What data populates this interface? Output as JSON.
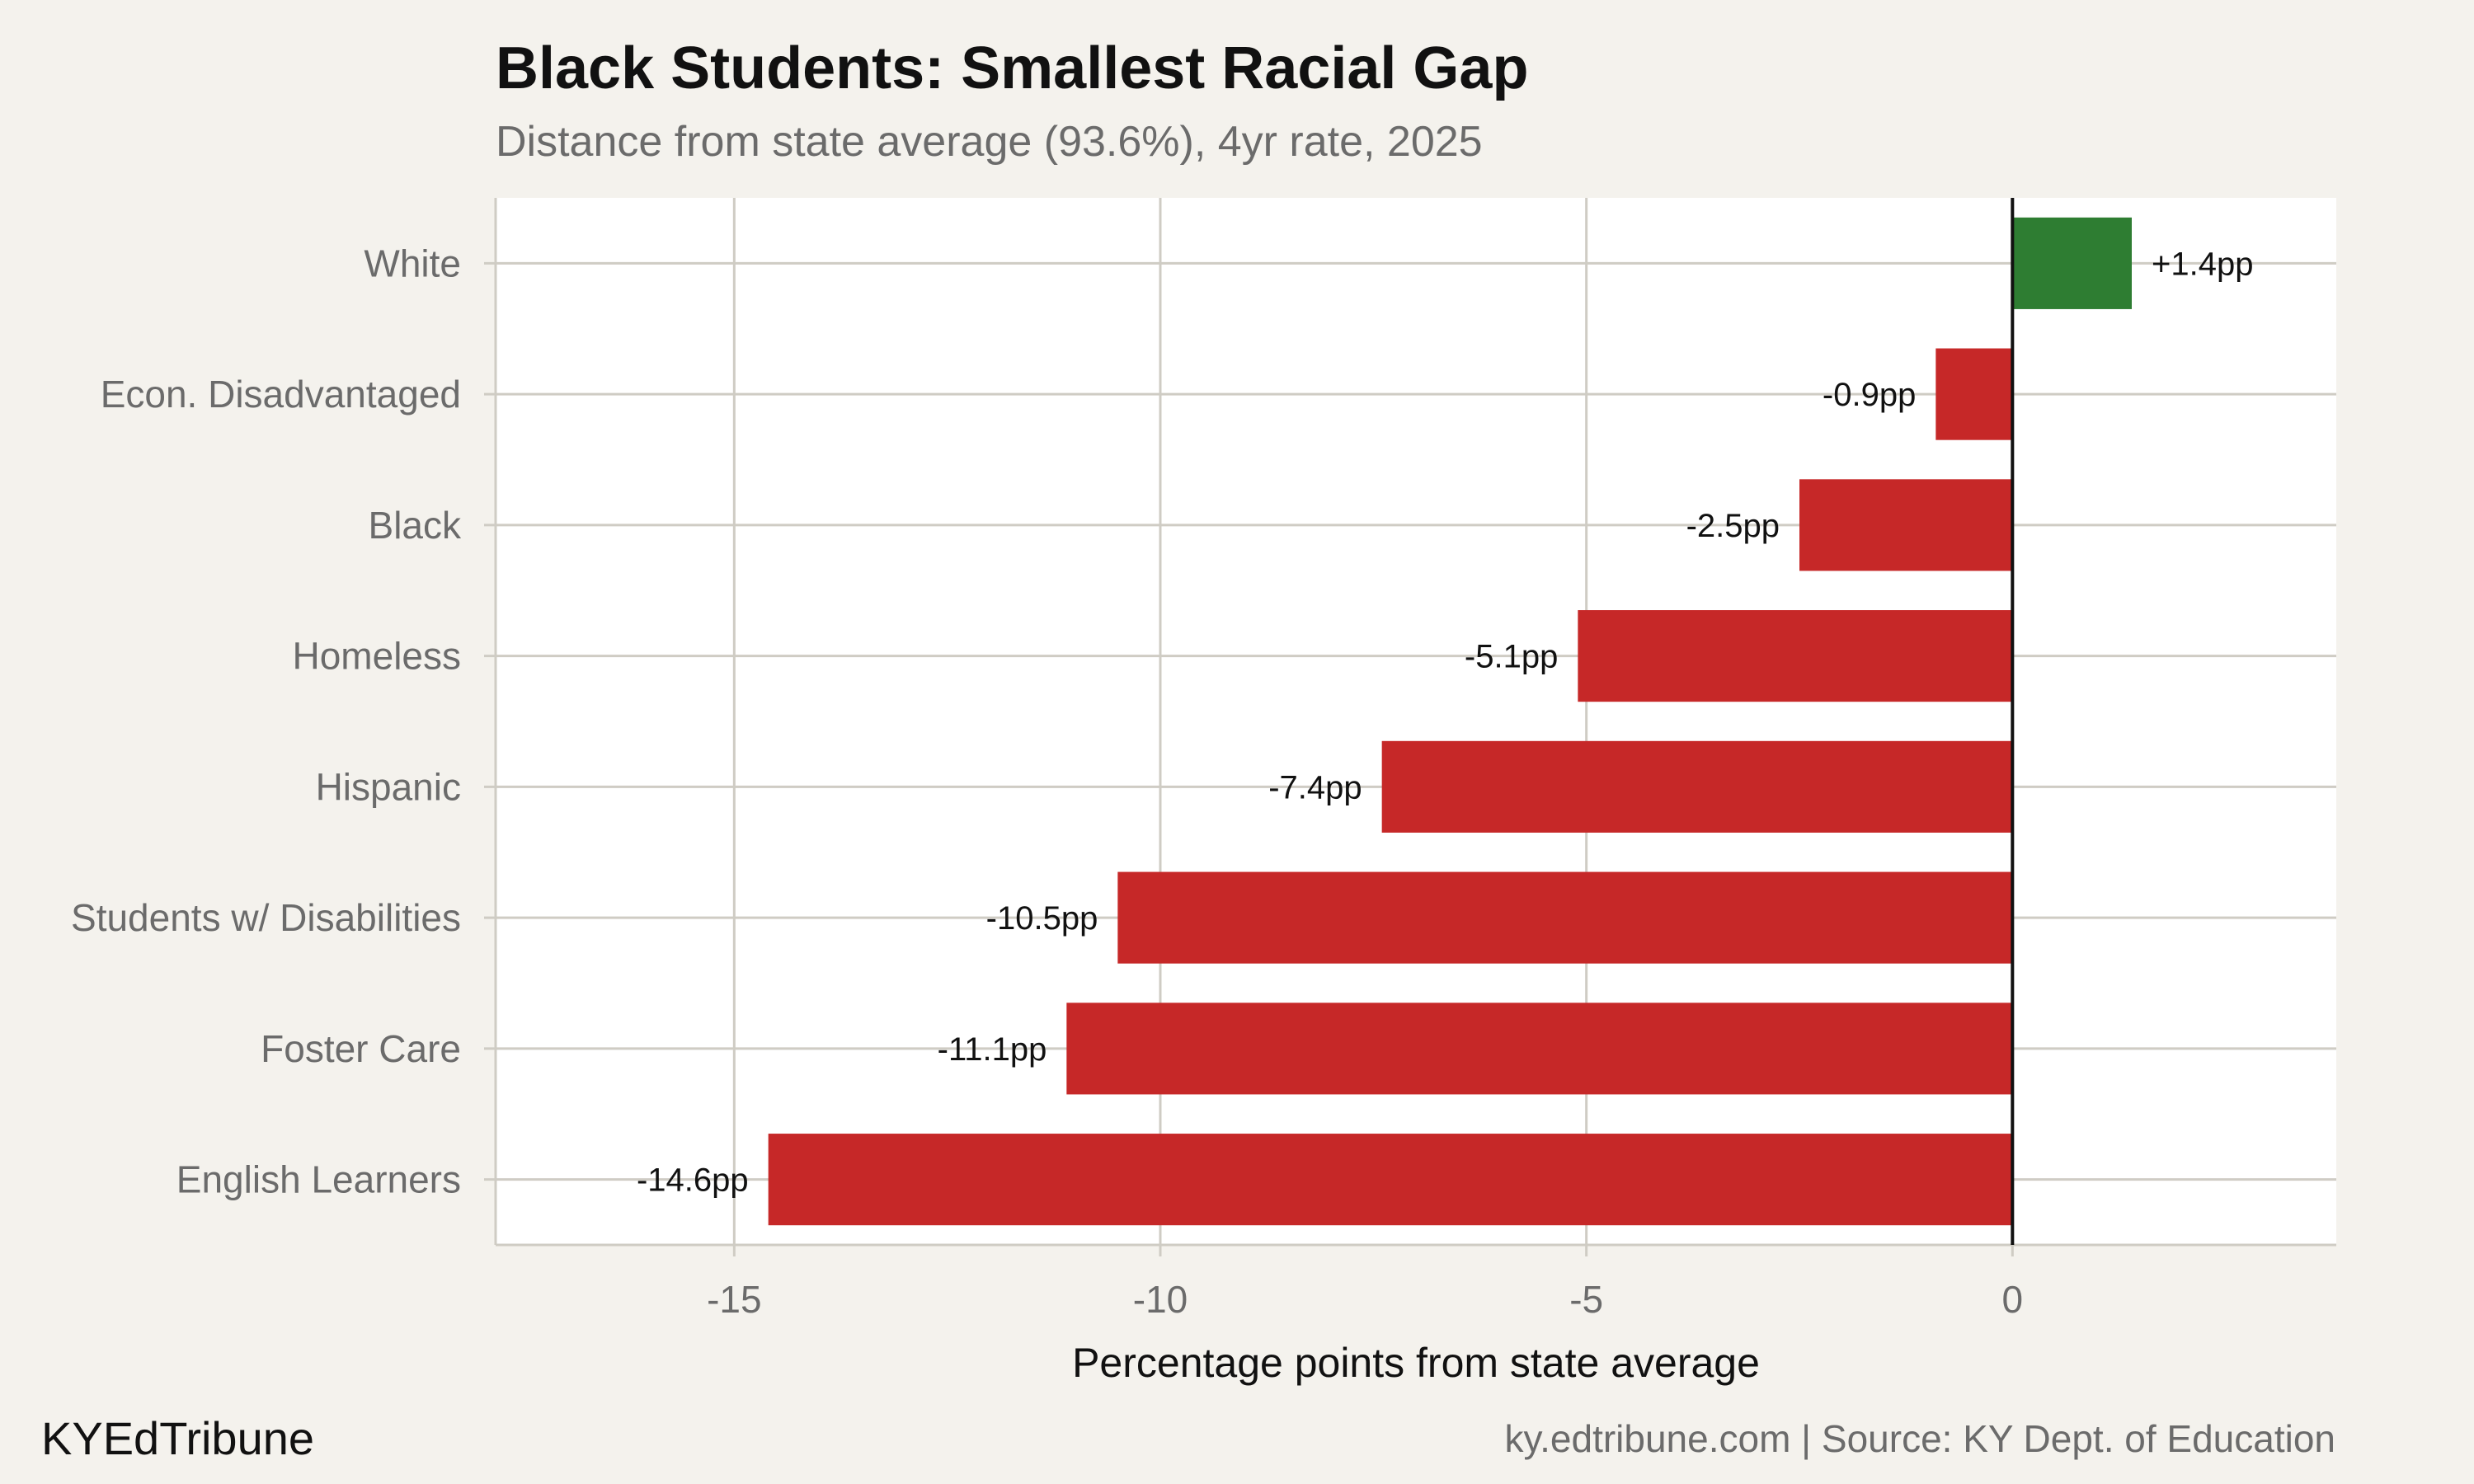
{
  "footer": {
    "brand": "KYEdTribune",
    "source": "ky.edtribune.com | Source: KY Dept. of Education"
  },
  "colors": {
    "positive": "#2e7d32",
    "negative": "#c62828",
    "background": "#f4f2ed",
    "panel": "#ffffff",
    "grid": "#cfccc4"
  },
  "chart_data": {
    "type": "bar",
    "orientation": "horizontal",
    "title": "Black Students: Smallest Racial Gap",
    "subtitle": "Distance from state average (93.6%), 4yr rate, 2025",
    "xlabel": "Percentage points from state average",
    "ylabel": "",
    "xlim": [
      -17.8,
      3.8
    ],
    "xticks": [
      -15,
      -10,
      -5,
      0
    ],
    "xtick_labels": [
      "-15",
      "-10",
      "-5",
      "0"
    ],
    "grid": true,
    "categories": [
      "White",
      "Econ. Disadvantaged",
      "Black",
      "Homeless",
      "Hispanic",
      "Students w/ Disabilities",
      "Foster Care",
      "English Learners"
    ],
    "values": [
      1.4,
      -0.9,
      -2.5,
      -5.1,
      -7.4,
      -10.5,
      -11.1,
      -14.6
    ],
    "data_labels": [
      "+1.4pp",
      "-0.9pp",
      "-2.5pp",
      "-5.1pp",
      "-7.4pp",
      "-10.5pp",
      "-11.1pp",
      "-14.6pp"
    ]
  }
}
